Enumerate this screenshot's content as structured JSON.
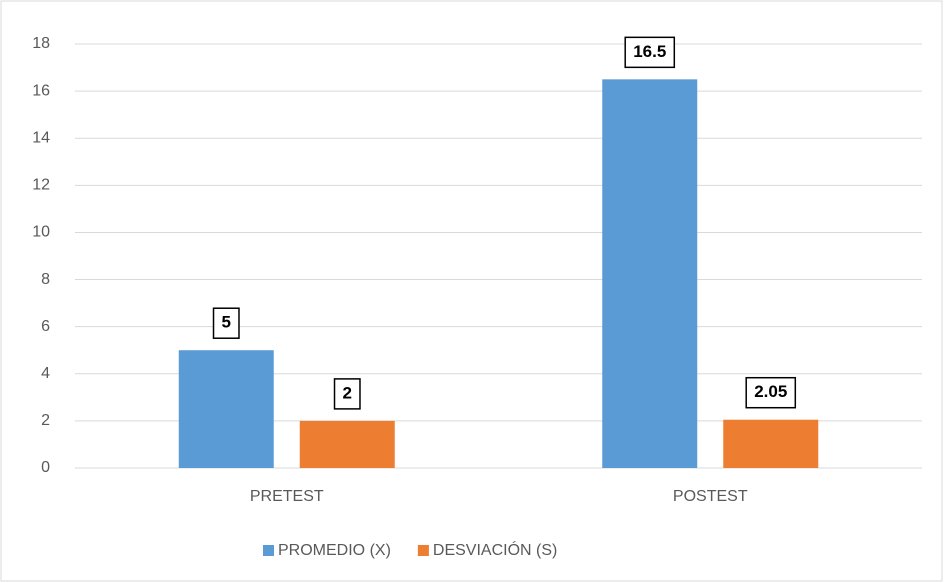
{
  "chart_data": {
    "type": "bar",
    "categories": [
      "PRETEST",
      "POSTEST"
    ],
    "series": [
      {
        "name": "PROMEDIO (X)",
        "color": "#5b9bd5",
        "values": [
          5,
          16.5
        ]
      },
      {
        "name": "DESVIACIÓN (S)",
        "color": "#ed7d31",
        "values": [
          2,
          2.05
        ]
      }
    ],
    "ylim": [
      0,
      18
    ],
    "yticks": [
      0,
      2,
      4,
      6,
      8,
      10,
      12,
      14,
      16,
      18
    ],
    "grid": true,
    "legend": "bottom"
  }
}
